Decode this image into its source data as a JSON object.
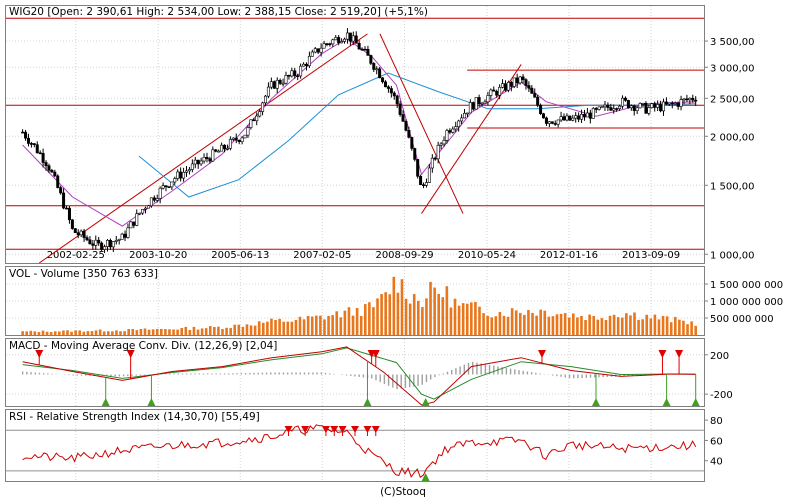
{
  "footer": "(C)Stooq",
  "colors": {
    "price_bar": "#000000",
    "sma_short": "#b040c0",
    "sma_long": "#1e90d8",
    "level_line": "#c00000",
    "volume": "#e8761c",
    "macd_line": "#c00000",
    "signal_line": "#2a8a2a",
    "histogram": "#a0a0a0",
    "rsi_line": "#d00000",
    "sell_marker": "#e00000",
    "buy_marker": "#40a020"
  },
  "chart_data": [
    {
      "type": "line",
      "title": "WIG20 [Open: 2 390,61  High: 2 534,00  Low: 2 388,15  Close: 2 519,20]  (+5,1%)",
      "y_scale": "log",
      "ylim": [
        950,
        4300
      ],
      "x_tick_labels": [
        "2002-02-25",
        "2003-10-20",
        "2005-06-13",
        "2007-02-05",
        "2008-09-29",
        "2010-05-24",
        "2012-01-16",
        "2013-09-09"
      ],
      "y_tick_values": [
        1000,
        1500,
        2000,
        2500,
        3000,
        3500
      ],
      "y_tick_labels": [
        "1 000,00",
        "1 500,00",
        "2 000,00",
        "2 500,00",
        "3 000,00",
        "3 500,00"
      ],
      "series": [
        {
          "kind": "price",
          "x": [
            "2001-02",
            "2001-08",
            "2002-02",
            "2002-08",
            "2003-02",
            "2003-08",
            "2004-02",
            "2004-08",
            "2005-02",
            "2005-08",
            "2006-02",
            "2006-08",
            "2007-02",
            "2007-08",
            "2008-02",
            "2008-08",
            "2009-02",
            "2009-08",
            "2010-02",
            "2010-08",
            "2011-02",
            "2011-08",
            "2012-02",
            "2012-08",
            "2013-02",
            "2013-08",
            "2014-02",
            "2014-08"
          ],
          "values": [
            2050,
            1700,
            1150,
            1050,
            1100,
            1350,
            1550,
            1700,
            1850,
            2050,
            2700,
            2900,
            3400,
            3650,
            3100,
            2450,
            1450,
            2050,
            2400,
            2600,
            2800,
            2200,
            2200,
            2300,
            2450,
            2350,
            2400,
            2519
          ]
        },
        {
          "kind": "sma_short",
          "x": [
            "2001-02",
            "2002-02",
            "2003-02",
            "2004-02",
            "2005-02",
            "2006-02",
            "2007-02",
            "2007-08",
            "2008-02",
            "2008-08",
            "2009-02",
            "2010-02",
            "2011-02",
            "2011-08",
            "2012-08",
            "2013-08",
            "2014-08"
          ],
          "values": [
            1900,
            1400,
            1180,
            1450,
            1800,
            2500,
            3250,
            3550,
            3200,
            2700,
            1600,
            2300,
            2750,
            2450,
            2250,
            2420,
            2450
          ]
        },
        {
          "kind": "sma_long",
          "x": [
            "2003-06",
            "2004-06",
            "2005-06",
            "2006-06",
            "2007-06",
            "2008-06",
            "2009-06",
            "2010-06",
            "2011-06",
            "2012-06",
            "2013-06",
            "2014-08"
          ],
          "values": [
            1780,
            1400,
            1550,
            1950,
            2550,
            2900,
            2600,
            2350,
            2350,
            2400,
            2400,
            2420
          ]
        }
      ],
      "trend_lines": [
        {
          "from": [
            "2001-06",
            950
          ],
          "to": [
            "2008-01",
            3650
          ]
        },
        {
          "from": [
            "2008-04",
            3650
          ],
          "to": [
            "2009-12",
            1270
          ]
        },
        {
          "from": [
            "2009-02",
            1270
          ],
          "to": [
            "2011-02",
            3050
          ]
        }
      ],
      "horizontal_levels": [
        4000,
        2400,
        1330,
        1030,
        2950,
        2100
      ]
    },
    {
      "type": "bar",
      "title": "VOL - Volume [350 763 633]",
      "ylim": [
        0,
        2000000000
      ],
      "y_tick_values": [
        500000000,
        1000000000,
        1500000000
      ],
      "y_tick_labels": [
        "500 000 000",
        "1 000 000 000",
        "1 500 000 000"
      ],
      "x": [
        "2001-02",
        "2002-02",
        "2003-02",
        "2004-02",
        "2005-02",
        "2005-08",
        "2006-02",
        "2006-08",
        "2007-02",
        "2007-08",
        "2008-02",
        "2008-05",
        "2008-08",
        "2008-11",
        "2009-02",
        "2009-05",
        "2009-08",
        "2009-11",
        "2010-02",
        "2010-08",
        "2011-02",
        "2011-08",
        "2012-02",
        "2012-08",
        "2013-02",
        "2013-08",
        "2014-02",
        "2014-08"
      ],
      "values": [
        100000000,
        120000000,
        140000000,
        180000000,
        230000000,
        310000000,
        400000000,
        440000000,
        530000000,
        660000000,
        800000000,
        1100000000,
        1650000000,
        1200000000,
        1000000000,
        1350000000,
        1200000000,
        850000000,
        820000000,
        650000000,
        720000000,
        700000000,
        600000000,
        520000000,
        650000000,
        560000000,
        450000000,
        350000000
      ]
    },
    {
      "type": "line",
      "title": "MACD - Moving Average Conv. Div. (12,26,9) [2,04]",
      "ylim": [
        -320,
        360
      ],
      "y_tick_values": [
        200,
        -200
      ],
      "y_tick_labels": [
        "200",
        "-200"
      ],
      "series": [
        {
          "kind": "macd_line",
          "x": [
            "2001-02",
            "2002-02",
            "2003-02",
            "2004-02",
            "2005-02",
            "2006-02",
            "2007-02",
            "2007-08",
            "2008-05",
            "2009-02",
            "2009-05",
            "2010-02",
            "2011-02",
            "2012-02",
            "2013-02",
            "2014-02",
            "2014-08"
          ],
          "values": [
            130,
            30,
            -60,
            30,
            80,
            170,
            230,
            280,
            20,
            -310,
            -280,
            80,
            170,
            40,
            -20,
            5,
            2
          ]
        },
        {
          "kind": "signal_line",
          "x": [
            "2001-02",
            "2002-02",
            "2003-02",
            "2004-02",
            "2005-02",
            "2006-02",
            "2007-02",
            "2007-08",
            "2008-08",
            "2009-02",
            "2009-05",
            "2010-02",
            "2011-02",
            "2012-02",
            "2013-02",
            "2014-02",
            "2014-08"
          ],
          "values": [
            100,
            40,
            -40,
            20,
            70,
            150,
            210,
            270,
            120,
            -200,
            -250,
            -50,
            130,
            80,
            0,
            5,
            2
          ]
        }
      ],
      "histogram": {
        "x": [
          "2001-02",
          "2002-02",
          "2003-02",
          "2004-02",
          "2005-02",
          "2006-02",
          "2007-02",
          "2008-02",
          "2008-08",
          "2009-02",
          "2009-05",
          "2010-02",
          "2011-02",
          "2012-02",
          "2013-02",
          "2014-02",
          "2014-08"
        ],
        "values": [
          30,
          -10,
          -20,
          10,
          10,
          20,
          20,
          -40,
          -150,
          -110,
          -30,
          130,
          40,
          -40,
          -20,
          0,
          0
        ]
      },
      "sell_signals": [
        "2001-06",
        "2003-04",
        "2008-02",
        "2008-03",
        "2011-07",
        "2013-12",
        "2014-04"
      ],
      "buy_signals": [
        "2002-10",
        "2003-09",
        "2008-01",
        "2009-03",
        "2012-08",
        "2014-01",
        "2014-08"
      ]
    },
    {
      "type": "line",
      "title": "RSI - Relative Strength Index (14,30,70) [55,49]",
      "ylim": [
        20,
        90
      ],
      "y_tick_values": [
        80,
        60,
        40
      ],
      "y_tick_labels": [
        "80",
        "60",
        "40"
      ],
      "thresholds": [
        70,
        30
      ],
      "x": [
        "2001-02",
        "2002-02",
        "2003-02",
        "2004-02",
        "2005-02",
        "2006-02",
        "2006-08",
        "2007-02",
        "2007-08",
        "2008-02",
        "2008-08",
        "2009-02",
        "2009-08",
        "2010-02",
        "2011-02",
        "2011-08",
        "2012-02",
        "2013-02",
        "2014-02",
        "2014-08"
      ],
      "values": [
        45,
        42,
        50,
        55,
        58,
        64,
        70,
        72,
        68,
        46,
        30,
        27,
        52,
        58,
        60,
        45,
        56,
        52,
        54,
        55
      ],
      "overbought_markers": [
        "2006-06",
        "2006-10",
        "2007-03",
        "2007-05",
        "2007-07",
        "2007-10",
        "2008-01",
        "2008-03"
      ],
      "oversold_markers": [
        "2009-03"
      ]
    }
  ]
}
